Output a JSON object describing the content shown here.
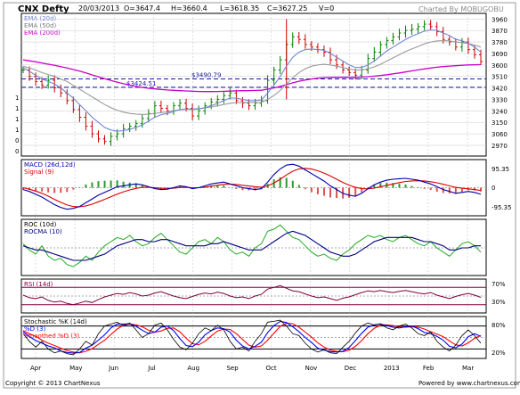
{
  "header": {
    "symbol": "CNX Defty",
    "date": "20/03/2013",
    "open": "O=3647.4",
    "high": "H=3660.4",
    "low": "L=3618.35",
    "close": "C=3627.25",
    "volume": "V=0",
    "charted_by": "Charted By MOBUGOBU"
  },
  "footer": {
    "copyright": "Copyright © 2013 ChartNexus",
    "powered_by": "Powered by www.chartnexus.com"
  },
  "colors": {
    "price_bar": "#008000",
    "ema20": "#6f86d6",
    "ema50": "#9a9a9a",
    "ema200": "#cc00cc",
    "hline": "#1a1aa6",
    "macd": "#0000aa",
    "signal": "#dd0000",
    "roc": "#22aa22",
    "rocma": "#000080",
    "rsi": "#800040",
    "stoch_k": "#000000",
    "stoch_d": "#0000ff",
    "stoch_smooth": "#ff0000",
    "panel_border": "#000000",
    "grid": "#c8c8c8",
    "band": "#800040"
  },
  "chart_data": [
    {
      "panel": "price",
      "type": "ohlc",
      "x_ticks": [
        "Apr",
        "May",
        "Jun",
        "Jul",
        "Aug",
        "Sep",
        "Oct",
        "Nov",
        "Dec",
        "2013",
        "Feb",
        "Mar"
      ],
      "y_ticks": [
        3960,
        3870,
        3780,
        3690,
        3600,
        3510,
        3420,
        3330,
        3240,
        3150,
        3060,
        2970
      ],
      "ylim": [
        2900,
        3990
      ],
      "legend": [
        "EMA (20d)",
        "EMA (50d)",
        "EMA (200d)"
      ],
      "horizontal_lines": [
        {
          "label": "$3490.79",
          "value": 3490.79
        },
        {
          "label": "$3424.51",
          "value": 3424.51
        }
      ],
      "left_axis_labels": [
        "1",
        "1",
        "1",
        "1",
        "0",
        "0"
      ],
      "close_series": [
        3560,
        3510,
        3470,
        3440,
        3480,
        3420,
        3380,
        3320,
        3250,
        3190,
        3120,
        3060,
        3020,
        3000,
        3040,
        3060,
        3100,
        3120,
        3140,
        3180,
        3220,
        3280,
        3260,
        3240,
        3280,
        3300,
        3260,
        3200,
        3240,
        3280,
        3310,
        3330,
        3360,
        3380,
        3320,
        3300,
        3280,
        3300,
        3320,
        3480,
        3560,
        3640,
        3760,
        3820,
        3800,
        3760,
        3740,
        3720,
        3700,
        3640,
        3600,
        3560,
        3540,
        3520,
        3560,
        3650,
        3700,
        3760,
        3790,
        3820,
        3850,
        3870,
        3880,
        3900,
        3920,
        3900,
        3860,
        3800,
        3780,
        3740,
        3780,
        3720,
        3680,
        3627
      ],
      "ema20_series": [
        3580,
        3550,
        3520,
        3490,
        3470,
        3450,
        3420,
        3380,
        3340,
        3290,
        3240,
        3190,
        3150,
        3110,
        3090,
        3080,
        3085,
        3095,
        3110,
        3130,
        3160,
        3190,
        3210,
        3220,
        3235,
        3250,
        3255,
        3250,
        3255,
        3265,
        3280,
        3300,
        3320,
        3340,
        3340,
        3330,
        3320,
        3320,
        3325,
        3380,
        3440,
        3510,
        3590,
        3660,
        3700,
        3720,
        3725,
        3720,
        3715,
        3690,
        3660,
        3630,
        3600,
        3580,
        3580,
        3600,
        3630,
        3670,
        3710,
        3740,
        3770,
        3800,
        3825,
        3845,
        3865,
        3875,
        3870,
        3850,
        3830,
        3800,
        3790,
        3770,
        3740,
        3700
      ],
      "ema50_series": [
        3590,
        3575,
        3560,
        3540,
        3525,
        3510,
        3490,
        3470,
        3440,
        3410,
        3380,
        3350,
        3320,
        3290,
        3265,
        3245,
        3230,
        3220,
        3215,
        3212,
        3214,
        3220,
        3226,
        3232,
        3240,
        3248,
        3252,
        3254,
        3258,
        3263,
        3270,
        3280,
        3290,
        3300,
        3305,
        3307,
        3306,
        3305,
        3306,
        3330,
        3360,
        3400,
        3450,
        3500,
        3540,
        3570,
        3590,
        3600,
        3605,
        3600,
        3590,
        3580,
        3568,
        3560,
        3560,
        3570,
        3585,
        3605,
        3630,
        3655,
        3680,
        3705,
        3725,
        3745,
        3765,
        3780,
        3788,
        3790,
        3788,
        3780,
        3775,
        3768,
        3755,
        3740
      ],
      "ema200_series": [
        3640,
        3632,
        3624,
        3615,
        3606,
        3597,
        3587,
        3576,
        3564,
        3551,
        3537,
        3522,
        3507,
        3492,
        3478,
        3465,
        3453,
        3442,
        3432,
        3424,
        3417,
        3412,
        3408,
        3404,
        3401,
        3398,
        3396,
        3394,
        3392,
        3391,
        3391,
        3392,
        3393,
        3395,
        3397,
        3398,
        3399,
        3400,
        3402,
        3410,
        3420,
        3432,
        3446,
        3460,
        3472,
        3482,
        3490,
        3496,
        3500,
        3502,
        3503,
        3503,
        3503,
        3503,
        3505,
        3508,
        3512,
        3517,
        3523,
        3530,
        3537,
        3545,
        3553,
        3561,
        3569,
        3576,
        3582,
        3587,
        3591,
        3594,
        3597,
        3600,
        3601,
        3602
      ]
    },
    {
      "panel": "macd",
      "type": "line",
      "legend": [
        "MACD (26d,12d)",
        "Signal (9)"
      ],
      "y_ticks": [
        "95.35",
        "0",
        "-95.35"
      ],
      "ylim": [
        -140,
        140
      ],
      "macd_series": [
        -10,
        -20,
        -35,
        -50,
        -70,
        -90,
        -105,
        -115,
        -110,
        -100,
        -80,
        -60,
        -40,
        -25,
        -10,
        5,
        10,
        15,
        20,
        15,
        5,
        -5,
        -10,
        -8,
        0,
        10,
        5,
        -5,
        0,
        10,
        20,
        25,
        30,
        20,
        10,
        0,
        -5,
        -10,
        -5,
        30,
        70,
        100,
        120,
        125,
        115,
        95,
        75,
        55,
        35,
        10,
        -10,
        -30,
        -40,
        -45,
        -30,
        -5,
        15,
        30,
        40,
        45,
        48,
        50,
        45,
        40,
        30,
        20,
        5,
        -10,
        -20,
        -30,
        -25,
        -20,
        -25,
        -35
      ],
      "signal_series": [
        0,
        -8,
        -18,
        -30,
        -45,
        -62,
        -78,
        -92,
        -100,
        -102,
        -97,
        -88,
        -75,
        -62,
        -48,
        -34,
        -22,
        -12,
        -4,
        2,
        3,
        0,
        -3,
        -4,
        -3,
        1,
        2,
        0,
        0,
        3,
        8,
        13,
        18,
        19,
        17,
        13,
        9,
        5,
        3,
        10,
        25,
        45,
        68,
        88,
        100,
        103,
        99,
        90,
        78,
        62,
        45,
        28,
        14,
        2,
        -5,
        -6,
        -2,
        5,
        13,
        20,
        27,
        33,
        36,
        37,
        36,
        32,
        26,
        18,
        10,
        2,
        -3,
        -6,
        -10,
        -15
      ]
    },
    {
      "panel": "roc",
      "type": "line",
      "legend": [
        "ROC (10d)",
        "ROCMA (10)"
      ],
      "roc_series": [
        2,
        -1,
        -3,
        1,
        -4,
        -6,
        -5,
        -8,
        -9,
        -7,
        -4,
        -6,
        -2,
        1,
        3,
        5,
        4,
        6,
        3,
        1,
        2,
        5,
        7,
        4,
        1,
        -2,
        -3,
        0,
        3,
        4,
        2,
        5,
        3,
        -1,
        -3,
        -2,
        -4,
        0,
        2,
        8,
        9,
        11,
        8,
        5,
        4,
        1,
        -2,
        -4,
        -3,
        -5,
        -6,
        -3,
        -1,
        2,
        4,
        6,
        5,
        6,
        4,
        3,
        5,
        6,
        4,
        2,
        1,
        3,
        0,
        -2,
        -4,
        -1,
        2,
        3,
        1,
        -2
      ],
      "rocma_series": [
        1,
        0,
        -1,
        -1,
        -2,
        -3,
        -4,
        -5,
        -6,
        -6,
        -6,
        -5,
        -4,
        -3,
        -1,
        1,
        2,
        3,
        4,
        4,
        3,
        3,
        4,
        4,
        3,
        2,
        1,
        1,
        1,
        1,
        2,
        2,
        3,
        2,
        1,
        0,
        -1,
        -1,
        -1,
        1,
        3,
        5,
        7,
        8,
        7,
        6,
        4,
        2,
        0,
        -2,
        -3,
        -4,
        -4,
        -3,
        -1,
        1,
        3,
        4,
        5,
        5,
        5,
        5,
        5,
        4,
        3,
        3,
        2,
        1,
        -1,
        -1,
        0,
        0,
        1,
        1
      ]
    },
    {
      "panel": "rsi",
      "type": "line",
      "legend": [
        "RSI (14d)"
      ],
      "y_ticks": [
        "70%",
        "30%"
      ],
      "ylim": [
        15,
        85
      ],
      "rsi_series": [
        52,
        46,
        44,
        48,
        40,
        36,
        38,
        33,
        30,
        34,
        38,
        35,
        42,
        48,
        52,
        56,
        54,
        58,
        55,
        50,
        52,
        57,
        60,
        55,
        50,
        46,
        44,
        49,
        54,
        57,
        55,
        59,
        56,
        50,
        46,
        48,
        44,
        50,
        54,
        66,
        70,
        74,
        68,
        62,
        60,
        55,
        50,
        46,
        48,
        44,
        40,
        45,
        48,
        53,
        58,
        62,
        60,
        63,
        60,
        58,
        61,
        63,
        60,
        57,
        55,
        58,
        52,
        48,
        44,
        49,
        53,
        56,
        52,
        47
      ]
    },
    {
      "panel": "stochastic",
      "type": "line",
      "legend": [
        "Stochastic %K (14d)",
        "%D (3)",
        "Smoothed %D (3)"
      ],
      "y_ticks": [
        "80%",
        "20%"
      ],
      "ylim": [
        0,
        100
      ],
      "k_series": [
        60,
        40,
        25,
        40,
        20,
        10,
        15,
        8,
        5,
        20,
        40,
        30,
        60,
        80,
        85,
        90,
        80,
        88,
        70,
        50,
        60,
        82,
        88,
        70,
        45,
        25,
        18,
        35,
        60,
        75,
        68,
        82,
        70,
        40,
        20,
        25,
        15,
        40,
        60,
        90,
        92,
        95,
        80,
        60,
        55,
        35,
        20,
        12,
        18,
        10,
        8,
        25,
        40,
        62,
        80,
        88,
        82,
        86,
        75,
        70,
        80,
        85,
        75,
        60,
        55,
        65,
        40,
        25,
        15,
        30,
        55,
        70,
        55,
        35
      ],
      "d_series": [
        65,
        52,
        42,
        35,
        28,
        23,
        15,
        11,
        9,
        11,
        22,
        30,
        43,
        57,
        75,
        85,
        85,
        86,
        79,
        69,
        60,
        64,
        77,
        80,
        68,
        47,
        29,
        26,
        38,
        57,
        68,
        75,
        73,
        64,
        43,
        28,
        20,
        27,
        38,
        63,
        81,
        92,
        89,
        78,
        65,
        50,
        37,
        22,
        17,
        13,
        12,
        14,
        24,
        42,
        61,
        77,
        83,
        85,
        81,
        77,
        75,
        78,
        80,
        73,
        63,
        60,
        53,
        43,
        27,
        23,
        33,
        52,
        60,
        53
      ],
      "smoothed_series": [
        68,
        60,
        53,
        43,
        35,
        29,
        22,
        16,
        12,
        10,
        14,
        21,
        32,
        43,
        58,
        72,
        82,
        85,
        83,
        78,
        69,
        64,
        67,
        74,
        75,
        65,
        48,
        34,
        31,
        40,
        54,
        67,
        72,
        71,
        60,
        45,
        30,
        25,
        28,
        43,
        61,
        79,
        87,
        86,
        77,
        64,
        51,
        36,
        25,
        17,
        14,
        13,
        17,
        27,
        42,
        60,
        74,
        82,
        83,
        81,
        78,
        77,
        78,
        77,
        72,
        65,
        59,
        52,
        41,
        31,
        28,
        36,
        48,
        55
      ]
    }
  ]
}
